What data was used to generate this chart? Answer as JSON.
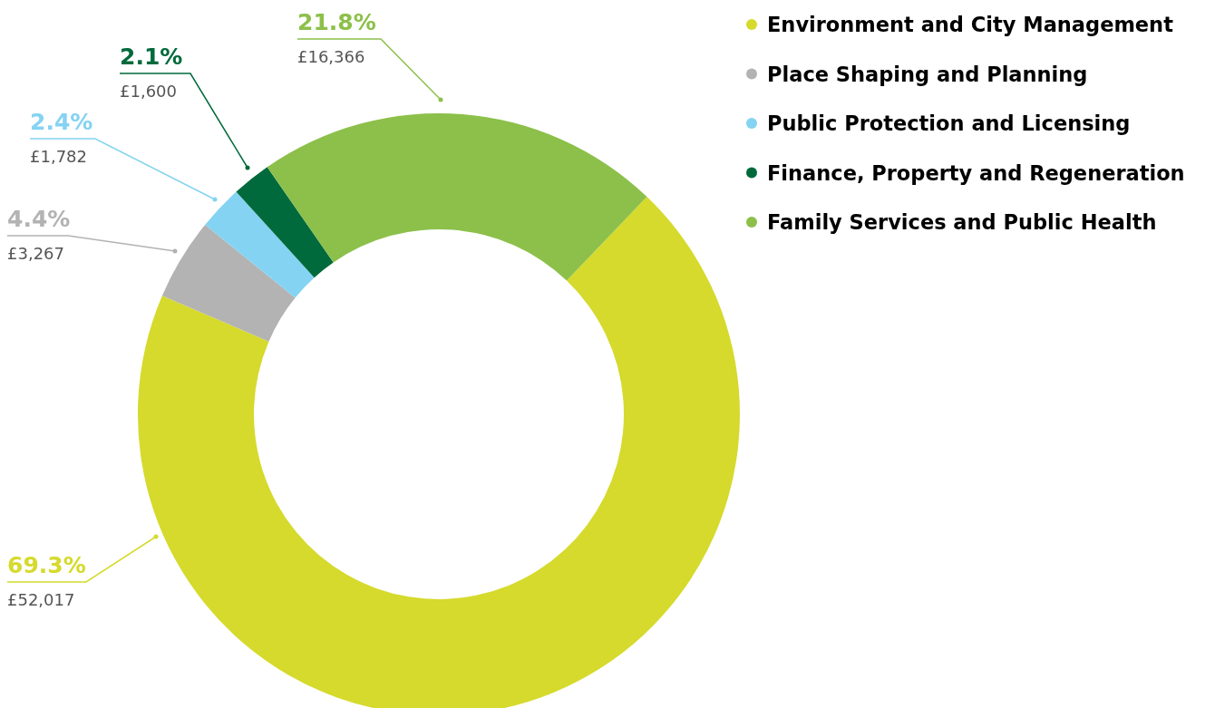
{
  "chart_data": {
    "type": "donut",
    "categories": [
      "Environment and City Management",
      "Place Shaping and Planning",
      "Public Protection and Licensing",
      "Finance, Property and Regeneration",
      "Family Services and Public Health"
    ],
    "values": [
      69.3,
      4.4,
      2.4,
      2.1,
      21.8
    ],
    "colors": [
      "#d5da2c",
      "#b3b3b3",
      "#85d3f2",
      "#006a3c",
      "#8cc04a"
    ],
    "value_labels": [
      "69.3%",
      "4.4%",
      "2.4%",
      "2.1%",
      "21.8%"
    ],
    "annotations": [
      {
        "text": "£52,017",
        "x": "Environment and City Management"
      },
      {
        "text": "£3,267",
        "x": "Place Shaping and Planning"
      },
      {
        "text": "£1,782",
        "x": "Public Protection and Licensing"
      },
      {
        "text": "£1,600",
        "x": "Finance, Property and Regeneration"
      },
      {
        "text": "£16,366",
        "x": "Family Services and Public Health"
      }
    ],
    "legend": "top right"
  }
}
